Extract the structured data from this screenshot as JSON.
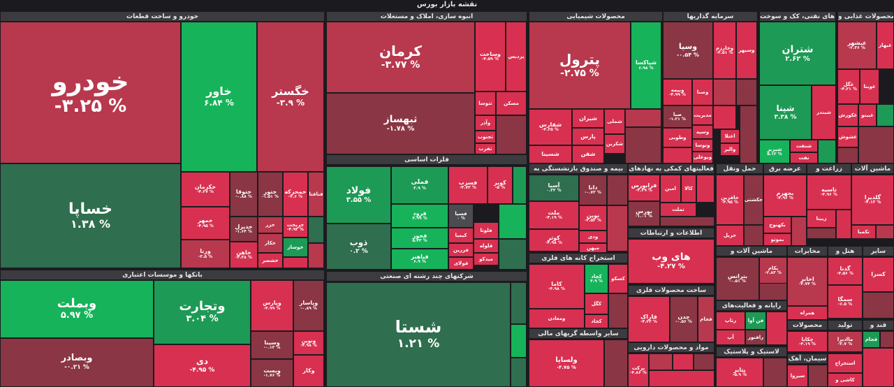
{
  "page_title": "نقشه بازار بورس",
  "colors": {
    "background": "#1b1b1f",
    "header": "#3b3b40",
    "strong_red": "#d83050",
    "mid_red": "#b8384e",
    "dark_red": "#8a3644",
    "neutral": "#4b4b50",
    "dark_green": "#2f6e4e",
    "mid_green": "#1d9a55",
    "strong_green": "#16b35a"
  },
  "chart_data": {
    "type": "treemap",
    "title": "نقشه بازار بورس",
    "sectors": [
      {
        "name": "خودرو و ساخت قطعات",
        "stocks": [
          {
            "name": "خودرو",
            "change": "-۳.۲۵ %"
          },
          {
            "name": "خاور",
            "change": "۶.۸۴ %"
          },
          {
            "name": "خگستر",
            "change": "-۳.۹ %"
          },
          {
            "name": "خساپا",
            "change": "۱.۳۸ %"
          },
          {
            "name": "خکرمان",
            "change": "-۴.۲۷ %"
          },
          {
            "name": "ختوقا",
            "change": "-۰.۸۸ %"
          },
          {
            "name": "ختور",
            "change": "-۱.۵۱ %"
          },
          {
            "name": "خمحرکه",
            "change": "-۴.۶ %"
          },
          {
            "name": "فنافتا",
            "change": ""
          },
          {
            "name": "خمهر",
            "change": "-۴.۹۵ %"
          },
          {
            "name": "خدیزل",
            "change": "-۱.۶۴ %"
          },
          {
            "name": "خزر",
            "change": ""
          },
          {
            "name": "خریخت",
            "change": "-۴.۹۳ %"
          },
          {
            "name": "ورنا",
            "change": "-۳.۵ %"
          },
          {
            "name": "خاهن",
            "change": "-۴.۳۸ %"
          },
          {
            "name": "خکار",
            "change": ""
          },
          {
            "name": "خوساز",
            "change": ""
          },
          {
            "name": "خشصر",
            "change": ""
          }
        ]
      },
      {
        "name": "بانکها و موسسات اعتباری",
        "stocks": [
          {
            "name": "وبملت",
            "change": "۵.۹۷ %"
          },
          {
            "name": "وتجارت",
            "change": "۳.۰۴ %"
          },
          {
            "name": "وپارس",
            "change": "-۴.۹۹ %"
          },
          {
            "name": "وپاسار",
            "change": "-۰.۸۹ %"
          },
          {
            "name": "وبصادر",
            "change": "-۰.۲۱ %"
          },
          {
            "name": "دی",
            "change": "-۴.۹۵ %"
          },
          {
            "name": "وسینا",
            "change": "-۰.۱۳ %"
          },
          {
            "name": "ونوین",
            "change": "-۴.۹۸ %"
          },
          {
            "name": "ویست",
            "change": "-۱.۷۶ %"
          },
          {
            "name": "وکار",
            "change": ""
          }
        ]
      },
      {
        "name": "انبوه سازی، املاک و مستغلات",
        "stocks": [
          {
            "name": "کرمان",
            "change": "-۳.۷۷ %"
          },
          {
            "name": "وساخت",
            "change": "-۴.۵۹ %"
          },
          {
            "name": "پردیس",
            "change": ""
          },
          {
            "name": "ثبهساز",
            "change": "-۱.۷۸ %"
          },
          {
            "name": "ثنوسا",
            "change": ""
          },
          {
            "name": "مسکن",
            "change": ""
          },
          {
            "name": "وآذر",
            "change": ""
          },
          {
            "name": "ثجنوب",
            "change": ""
          },
          {
            "name": "ثفرب",
            "change": ""
          }
        ]
      },
      {
        "name": "فلزات اساسی",
        "stocks": [
          {
            "name": "فولاد",
            "change": "۳.۵۵ %"
          },
          {
            "name": "فملی",
            "change": "۳.۹ %"
          },
          {
            "name": "فسرب",
            "change": "-۴.۷۳ %"
          },
          {
            "name": "کویر",
            "change": "-۵ %"
          },
          {
            "name": "ذوب",
            "change": "۰.۲ %"
          },
          {
            "name": "فرود",
            "change": "۴.۹۹ %"
          },
          {
            "name": "فسپا",
            "change": "۰ %"
          },
          {
            "name": "فخوز",
            "change": "۵.۴۳ %"
          },
          {
            "name": "فلوتا",
            "change": ""
          },
          {
            "name": "کیمیا",
            "change": ""
          },
          {
            "name": "فباهنر",
            "change": "۶.۹ %"
          },
          {
            "name": "فزرین",
            "change": ""
          },
          {
            "name": "فولای",
            "change": ""
          },
          {
            "name": "قلوله",
            "change": ""
          },
          {
            "name": "میدکو",
            "change": ""
          }
        ]
      },
      {
        "name": "شرکتهای چند رشته ای صنعتی",
        "stocks": [
          {
            "name": "شستا",
            "change": "۱.۲۱ %"
          }
        ]
      },
      {
        "name": "محصولات شیمیایی",
        "stocks": [
          {
            "name": "پترول",
            "change": "-۲.۷۵ %"
          },
          {
            "name": "شپاکسا",
            "change": "۶.۹۸ %"
          },
          {
            "name": "شفارس",
            "change": "-۴.۲۵ %"
          },
          {
            "name": "شیران",
            "change": ""
          },
          {
            "name": "شملی",
            "change": ""
          },
          {
            "name": "پارس",
            "change": ""
          },
          {
            "name": "شکربن",
            "change": ""
          },
          {
            "name": "شفن",
            "change": ""
          },
          {
            "name": "شسینا",
            "change": ""
          }
        ]
      },
      {
        "name": "سرمایه گذاریها",
        "stocks": [
          {
            "name": "وسپا",
            "change": "-۰.۵۴ %"
          },
          {
            "name": "وخارزم",
            "change": "-۴.۵۱ %"
          },
          {
            "name": "وسپهر",
            "change": ""
          },
          {
            "name": "وبیمه",
            "change": "-۴.۹۹ %"
          },
          {
            "name": "وصنا",
            "change": ""
          },
          {
            "name": "صبا",
            "change": "-۱.۲۱ %"
          },
          {
            "name": "مدیریت",
            "change": ""
          },
          {
            "name": "وطوبی",
            "change": ""
          },
          {
            "name": "وسپه",
            "change": ""
          },
          {
            "name": "اعتلا",
            "change": ""
          },
          {
            "name": "والبر",
            "change": ""
          },
          {
            "name": "وتوسا",
            "change": ""
          },
          {
            "name": "وبوعلی",
            "change": ""
          }
        ]
      },
      {
        "name": "فراورده های نفتی، کک و سوخت",
        "stocks": [
          {
            "name": "شتران",
            "change": "۲.۶۲ %"
          },
          {
            "name": "شپنا",
            "change": "۳.۳۸ %"
          },
          {
            "name": "شبندر",
            "change": ""
          },
          {
            "name": "شبریز",
            "change": "۵.۱۲ %"
          },
          {
            "name": "شنفت",
            "change": ""
          },
          {
            "name": "نفت",
            "change": ""
          }
        ]
      },
      {
        "name": "محصولات غذایی و",
        "stocks": [
          {
            "name": "غبشهر",
            "change": "-۲.۳۶ %"
          },
          {
            "name": "غبهار",
            "change": ""
          },
          {
            "name": "غگل",
            "change": "-۴.۲۱ %"
          },
          {
            "name": "غویتا",
            "change": ""
          },
          {
            "name": "غکورش",
            "change": ""
          },
          {
            "name": "غبینو",
            "change": ""
          },
          {
            "name": "غشوش",
            "change": ""
          }
        ]
      },
      {
        "name": "ماشین آلات",
        "stocks": [
          {
            "name": "گلدیرا",
            "change": "-۴.۱۳ %"
          },
          {
            "name": "تکمبا",
            "change": ""
          }
        ]
      },
      {
        "name": "زراعت و",
        "stocks": [
          {
            "name": "تاسیه",
            "change": "-۴.۹۶ %"
          },
          {
            "name": "زبینا",
            "change": ""
          }
        ]
      },
      {
        "name": "عرضه برق",
        "stocks": [
          {
            "name": "بجهرم",
            "change": "-۴.۹۶ %"
          },
          {
            "name": "بکهنوج",
            "change": ""
          },
          {
            "name": "بموتو",
            "change": ""
          }
        ]
      },
      {
        "name": "حمل ونقل",
        "stocks": [
          {
            "name": "حافرین",
            "change": "-۴.۹۵ %"
          },
          {
            "name": "حکشتی",
            "change": ""
          },
          {
            "name": "حریل",
            "change": ""
          }
        ]
      },
      {
        "name": "بیمه و صندوق بازنشستگی به",
        "stocks": [
          {
            "name": "آسیا",
            "change": "۰.۳۳ %"
          },
          {
            "name": "دانا",
            "change": "-۰.۷۳ %"
          },
          {
            "name": "ملت",
            "change": "-۴.۱۹ %"
          },
          {
            "name": "نوین",
            "change": "-۴.۵۲ %"
          },
          {
            "name": "کوثر",
            "change": "-۴.۹۸ %"
          },
          {
            "name": "ودی",
            "change": ""
          },
          {
            "name": "میهن",
            "change": ""
          }
        ]
      },
      {
        "name": "فعالیتهای کمکی به نهادهای",
        "stocks": [
          {
            "name": "فرابورس",
            "change": "-۴.۲۹ %"
          },
          {
            "name": "امین",
            "change": ""
          },
          {
            "name": "کالا",
            "change": ""
          },
          {
            "name": "تملت",
            "change": ""
          },
          {
            "name": "بورس",
            "change": "-۱.۰۱ %"
          }
        ]
      },
      {
        "name": "استخراج کانه های فلزی",
        "stocks": [
          {
            "name": "کاما",
            "change": "-۴.۹۸ %"
          },
          {
            "name": "کچاد",
            "change": "۴.۹ %"
          },
          {
            "name": "کسکو",
            "change": ""
          },
          {
            "name": "کگل",
            "change": ""
          },
          {
            "name": "کجاد",
            "change": ""
          },
          {
            "name": "ومعادن",
            "change": ""
          }
        ]
      },
      {
        "name": "سایر واسطه گریهای مالی",
        "stocks": [
          {
            "name": "ولساپا",
            "change": "-۴.۷۵ %"
          }
        ]
      },
      {
        "name": "اطلاعات و ارتباطات",
        "stocks": [
          {
            "name": "های وب",
            "change": "-۴.۲۷ %"
          }
        ]
      },
      {
        "name": "ساخت محصولات فلزی",
        "stocks": [
          {
            "name": "فاراک",
            "change": "-۴.۲۳ %"
          },
          {
            "name": "چدن",
            "change": "-۰.۵۶ %"
          },
          {
            "name": "فجام",
            "change": ""
          }
        ]
      },
      {
        "name": "مواد و محصولات دارویی",
        "stocks": [
          {
            "name": "برکت",
            "change": "-۴.۸۶ %"
          }
        ]
      },
      {
        "name": "ماشین آلات و",
        "stocks": [
          {
            "name": "بترانس",
            "change": "-۰.۵۱ %"
          }
        ]
      },
      {
        "name": "مخابرات",
        "stocks": [
          {
            "name": "بکام",
            "change": "-۲.۸۳ %"
          },
          {
            "name": "اخابر",
            "change": "-۳.۷۴ %"
          },
          {
            "name": "همراه",
            "change": ""
          }
        ]
      },
      {
        "name": "هتل و",
        "stocks": [
          {
            "name": "گدنا",
            "change": "-۴.۵۶ %"
          },
          {
            "name": "سمگا",
            "change": "-۶.۵ %"
          }
        ]
      },
      {
        "name": "سایر",
        "stocks": [
          {
            "name": "کسرا",
            "change": ""
          }
        ]
      },
      {
        "name": "رایانه و فعالیت‌های",
        "stocks": [
          {
            "name": "رتاپ",
            "change": ""
          },
          {
            "name": "فن آوا",
            "change": ""
          },
          {
            "name": "آپ",
            "change": ""
          },
          {
            "name": "رافنور",
            "change": ""
          }
        ]
      },
      {
        "name": "محصولات",
        "stocks": [
          {
            "name": "چکاپا",
            "change": "-۴.۱۹ %"
          }
        ]
      },
      {
        "name": "تولید",
        "stocks": [
          {
            "name": "ماادیرا",
            "change": "-۳.۷ %"
          }
        ]
      },
      {
        "name": "قند و",
        "stocks": [
          {
            "name": "قجام",
            "change": ""
          }
        ]
      },
      {
        "name": "لاستیک و پلاستیک",
        "stocks": [
          {
            "name": "پتایر",
            "change": "-۵.۹ %"
          }
        ]
      },
      {
        "name": "سیمان، آهک",
        "stocks": [
          {
            "name": "سیزوا",
            "change": ""
          },
          {
            "name": "استخراج",
            "change": ""
          },
          {
            "name": "کاشی و",
            "change": ""
          }
        ]
      }
    ]
  }
}
